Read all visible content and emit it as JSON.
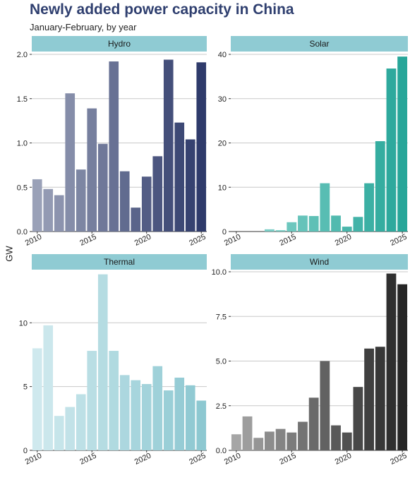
{
  "title": "Newly added power capacity in China",
  "subtitle": "January-February, by year",
  "ylabel": "GW",
  "chart_data": [
    {
      "type": "bar",
      "panel": "Hydro",
      "x": [
        2010,
        2011,
        2012,
        2013,
        2014,
        2015,
        2016,
        2017,
        2018,
        2019,
        2020,
        2021,
        2022,
        2023,
        2024,
        2025
      ],
      "values": [
        0.59,
        0.48,
        0.41,
        1.56,
        0.7,
        1.39,
        0.99,
        1.92,
        0.68,
        0.27,
        0.62,
        0.85,
        1.94,
        1.23,
        1.04,
        1.91
      ],
      "ylim": [
        0,
        2.0
      ],
      "yticks": [
        "0.0",
        "0.5",
        "1.0",
        "1.5",
        "2.0"
      ],
      "xticks": [
        "2010",
        "2015",
        "2020",
        "2025"
      ],
      "colors": {
        "start": "#9aa1b8",
        "end": "#2f3b6b"
      }
    },
    {
      "type": "bar",
      "panel": "Solar",
      "x": [
        2010,
        2011,
        2012,
        2013,
        2014,
        2015,
        2016,
        2017,
        2018,
        2019,
        2020,
        2021,
        2022,
        2023,
        2024,
        2025
      ],
      "values": [
        0,
        0,
        0,
        0.5,
        0.3,
        2.1,
        3.6,
        3.5,
        10.9,
        3.6,
        1.1,
        3.3,
        10.9,
        20.4,
        36.8,
        39.5
      ],
      "ylim": [
        0,
        40
      ],
      "yticks": [
        "0",
        "10",
        "20",
        "30",
        "40"
      ],
      "xticks": [
        "2010",
        "2015",
        "2020",
        "2025"
      ],
      "colors": {
        "start": "#8fd7d0",
        "end": "#27a699"
      }
    },
    {
      "type": "bar",
      "panel": "Thermal",
      "x": [
        2010,
        2011,
        2012,
        2013,
        2014,
        2015,
        2016,
        2017,
        2018,
        2019,
        2020,
        2021,
        2022,
        2023,
        2024,
        2025
      ],
      "values": [
        8.0,
        9.8,
        2.7,
        3.4,
        4.4,
        7.8,
        13.8,
        7.8,
        5.9,
        5.5,
        5.2,
        6.6,
        4.7,
        5.7,
        5.1,
        3.9
      ],
      "ylim": [
        0,
        14
      ],
      "yticks": [
        "0",
        "5",
        "10"
      ],
      "xticks": [
        "2010",
        "2015",
        "2020",
        "2025"
      ],
      "colors": {
        "start": "#cfe9ee",
        "end": "#8dc8d1"
      }
    },
    {
      "type": "bar",
      "panel": "Wind",
      "x": [
        2010,
        2011,
        2012,
        2013,
        2014,
        2015,
        2016,
        2017,
        2018,
        2019,
        2020,
        2021,
        2022,
        2023,
        2024,
        2025
      ],
      "values": [
        0.9,
        1.9,
        0.7,
        1.05,
        1.2,
        1.0,
        1.6,
        2.95,
        5.0,
        1.4,
        1.0,
        3.55,
        5.7,
        5.8,
        9.9,
        9.3
      ],
      "ylim": [
        0,
        10.0
      ],
      "yticks": [
        "0.0",
        "2.5",
        "5.0",
        "7.5",
        "10.0"
      ],
      "xticks": [
        "2010",
        "2015",
        "2020",
        "2025"
      ],
      "colors": {
        "start": "#a6a6a6",
        "end": "#262626"
      }
    }
  ],
  "colors": {
    "title": "#2f3f6f",
    "strip": "#8fcbd3",
    "grid": "#c8c8c8",
    "axis": "#333333"
  }
}
